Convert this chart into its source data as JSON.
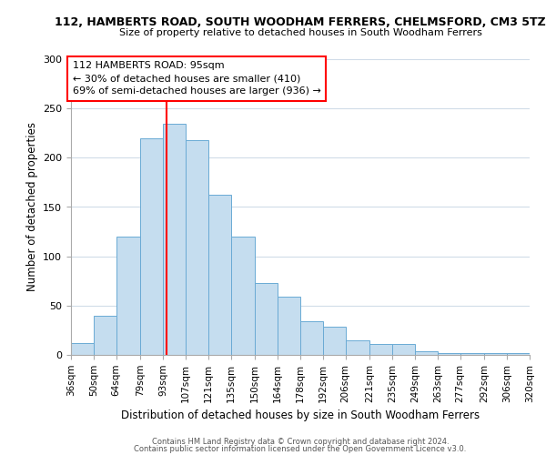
{
  "title": "112, HAMBERTS ROAD, SOUTH WOODHAM FERRERS, CHELMSFORD, CM3 5TZ",
  "subtitle": "Size of property relative to detached houses in South Woodham Ferrers",
  "xlabel": "Distribution of detached houses by size in South Woodham Ferrers",
  "ylabel": "Number of detached properties",
  "bar_color": "#c5ddef",
  "bar_edge_color": "#6aaad4",
  "vline_x": 95,
  "vline_color": "red",
  "categories": [
    "36sqm",
    "50sqm",
    "64sqm",
    "79sqm",
    "93sqm",
    "107sqm",
    "121sqm",
    "135sqm",
    "150sqm",
    "164sqm",
    "178sqm",
    "192sqm",
    "206sqm",
    "221sqm",
    "235sqm",
    "249sqm",
    "263sqm",
    "277sqm",
    "292sqm",
    "306sqm",
    "320sqm"
  ],
  "bin_edges": [
    36,
    50,
    64,
    79,
    93,
    107,
    121,
    135,
    150,
    164,
    178,
    192,
    206,
    221,
    235,
    249,
    263,
    277,
    292,
    306,
    320
  ],
  "values": [
    12,
    40,
    120,
    220,
    234,
    218,
    162,
    120,
    73,
    59,
    34,
    29,
    15,
    11,
    11,
    4,
    2,
    2,
    2,
    2
  ],
  "ylim": [
    0,
    300
  ],
  "yticks": [
    0,
    50,
    100,
    150,
    200,
    250,
    300
  ],
  "annotation_title": "112 HAMBERTS ROAD: 95sqm",
  "annotation_line1": "← 30% of detached houses are smaller (410)",
  "annotation_line2": "69% of semi-detached houses are larger (936) →",
  "annotation_box_color": "white",
  "annotation_box_edge": "red",
  "footer1": "Contains HM Land Registry data © Crown copyright and database right 2024.",
  "footer2": "Contains public sector information licensed under the Open Government Licence v3.0.",
  "bg_color": "white",
  "grid_color": "#d0dce8"
}
